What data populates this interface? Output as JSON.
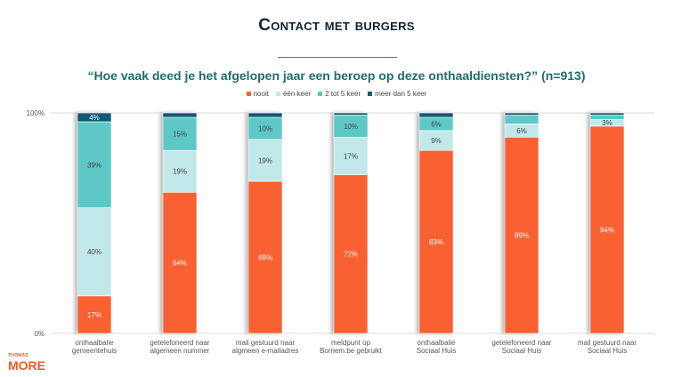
{
  "title": "Contact met burgers",
  "subtitle": "“Hoe vaak deed je het afgelopen jaar een beroep op deze onthaaldiensten?” (n=913)",
  "logo": {
    "line1": "THOMAS",
    "line2": "MORE"
  },
  "chart_data": {
    "type": "bar",
    "stacked": true,
    "percent": true,
    "categories": [
      "onthaalbalie gemeentehuis",
      "getelefoneerd naar algemeen nummer",
      "mail gestuurd naar algmeen e-mailadres",
      "meldpunt op Bornem.be gebruikt",
      "onthaalbalie Sociaal Huis",
      "getelefoneerd naar Sociaal Huis",
      "mail gestuurd naar Sociaal Huis"
    ],
    "series": [
      {
        "name": "nooit",
        "color": "#f96032",
        "values": [
          17,
          64,
          69,
          72,
          83,
          89,
          94
        ],
        "labels": [
          "17%",
          "64%",
          "69%",
          "72%",
          "83%",
          "89%",
          "94%"
        ]
      },
      {
        "name": "één keer",
        "color": "#c2e9ea",
        "values": [
          40,
          19,
          19,
          17,
          9,
          6,
          3
        ],
        "labels": [
          "40%",
          "19%",
          "19%",
          "17%",
          "9%",
          "6%",
          "3%"
        ]
      },
      {
        "name": "2 tot 5 keer",
        "color": "#5ec8c6",
        "values": [
          39,
          15,
          10,
          10,
          6,
          4,
          2
        ],
        "labels": [
          "39%",
          "15%",
          "10%",
          "10%",
          "6%",
          "",
          ""
        ]
      },
      {
        "name": "meer dan 5 keer",
        "color": "#0f5a78",
        "values": [
          4,
          2,
          2,
          1,
          2,
          1,
          1
        ],
        "labels": [
          "4%",
          "",
          "",
          "",
          "",
          "",
          ""
        ]
      }
    ],
    "yticks": [
      "0%",
      "100%"
    ],
    "ylim": [
      0,
      100
    ],
    "legend": "top",
    "grid": false
  }
}
